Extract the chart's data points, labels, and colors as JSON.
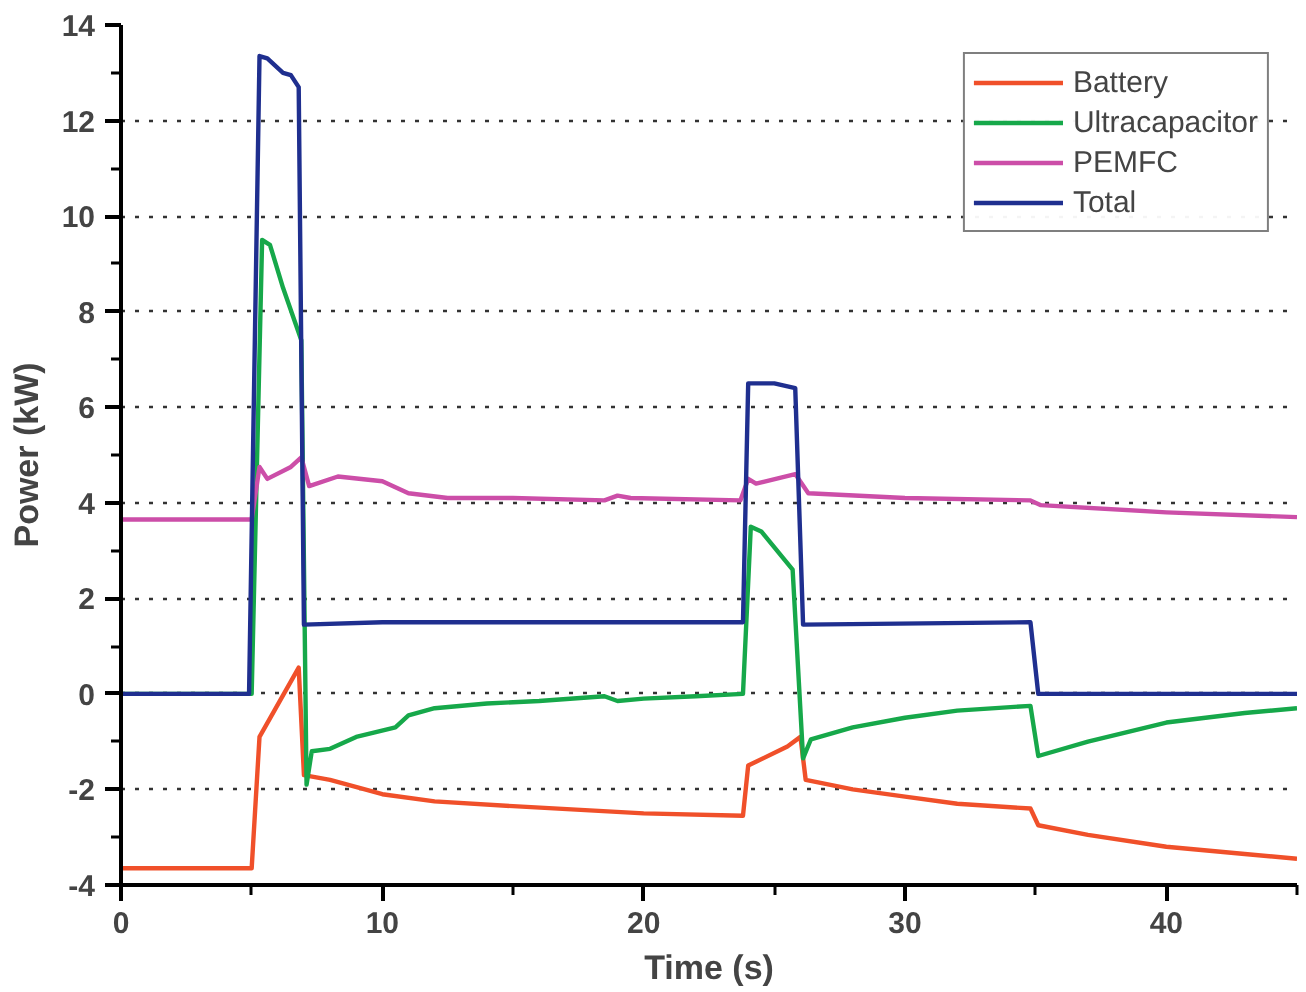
{
  "chart_data": {
    "type": "line",
    "xlabel": "Time (s)",
    "ylabel": "Power (kW)",
    "xlim": [
      0,
      45
    ],
    "ylim": [
      -4,
      14
    ],
    "xticks": [
      0,
      10,
      20,
      30,
      40
    ],
    "yticks": [
      -4,
      -2,
      0,
      2,
      4,
      6,
      8,
      10,
      12,
      14
    ],
    "grid": "y",
    "legend": "top right",
    "line_style": "solid",
    "marker": "none",
    "series": [
      {
        "name": "Battery",
        "color": "#f0502a",
        "x": [
          0,
          5.0,
          5.3,
          6.8,
          7.0,
          8,
          10,
          12,
          15,
          20,
          23.8,
          24,
          25.5,
          26,
          26.2,
          28,
          30,
          32,
          34.8,
          35.1,
          37,
          40,
          43,
          45
        ],
        "values": [
          -3.65,
          -3.65,
          -0.9,
          0.55,
          -1.7,
          -1.8,
          -2.1,
          -2.25,
          -2.35,
          -2.5,
          -2.55,
          -1.5,
          -1.1,
          -0.9,
          -1.8,
          -2.0,
          -2.15,
          -2.3,
          -2.4,
          -2.75,
          -2.95,
          -3.2,
          -3.35,
          -3.45
        ]
      },
      {
        "name": "Ultracapacitor",
        "color": "#16a84a",
        "x": [
          0,
          5,
          5.4,
          5.7,
          6.2,
          6.9,
          7.1,
          7.3,
          8,
          9,
          10.5,
          11,
          12,
          14,
          16,
          18.5,
          19,
          20,
          22,
          23.8,
          24.1,
          24.5,
          25.7,
          26.1,
          26.4,
          28,
          30,
          32,
          34.8,
          35.1,
          37,
          40,
          43,
          45
        ],
        "values": [
          0,
          0,
          9.5,
          9.4,
          8.5,
          7.4,
          -1.9,
          -1.2,
          -1.15,
          -0.9,
          -0.7,
          -0.45,
          -0.3,
          -0.2,
          -0.15,
          -0.05,
          -0.15,
          -0.1,
          -0.05,
          0,
          3.5,
          3.4,
          2.6,
          -1.35,
          -0.95,
          -0.7,
          -0.5,
          -0.35,
          -0.25,
          -1.3,
          -1.0,
          -0.6,
          -0.4,
          -0.3
        ]
      },
      {
        "name": "PEMFC",
        "color": "#cc4ea8",
        "x": [
          0,
          5,
          5.3,
          5.6,
          6.5,
          6.9,
          7.2,
          8.3,
          10,
          11,
          12.5,
          15,
          18.5,
          19,
          19.5,
          23.7,
          24,
          24.3,
          25.8,
          26.3,
          30,
          34.8,
          35.2,
          40,
          45
        ],
        "values": [
          3.65,
          3.65,
          4.75,
          4.5,
          4.75,
          4.95,
          4.35,
          4.55,
          4.45,
          4.2,
          4.1,
          4.1,
          4.05,
          4.15,
          4.1,
          4.05,
          4.5,
          4.4,
          4.6,
          4.2,
          4.1,
          4.05,
          3.95,
          3.8,
          3.7
        ]
      },
      {
        "name": "Total",
        "color": "#1f2f8f",
        "x": [
          0,
          4.9,
          5.3,
          5.6,
          6.2,
          6.5,
          6.8,
          7.0,
          10,
          23.8,
          24,
          25,
          25.8,
          26.1,
          34.8,
          35.1,
          45
        ],
        "values": [
          0,
          0,
          13.35,
          13.3,
          13.0,
          12.95,
          12.7,
          1.45,
          1.5,
          1.5,
          6.5,
          6.5,
          6.4,
          1.45,
          1.5,
          0,
          0
        ]
      }
    ]
  }
}
